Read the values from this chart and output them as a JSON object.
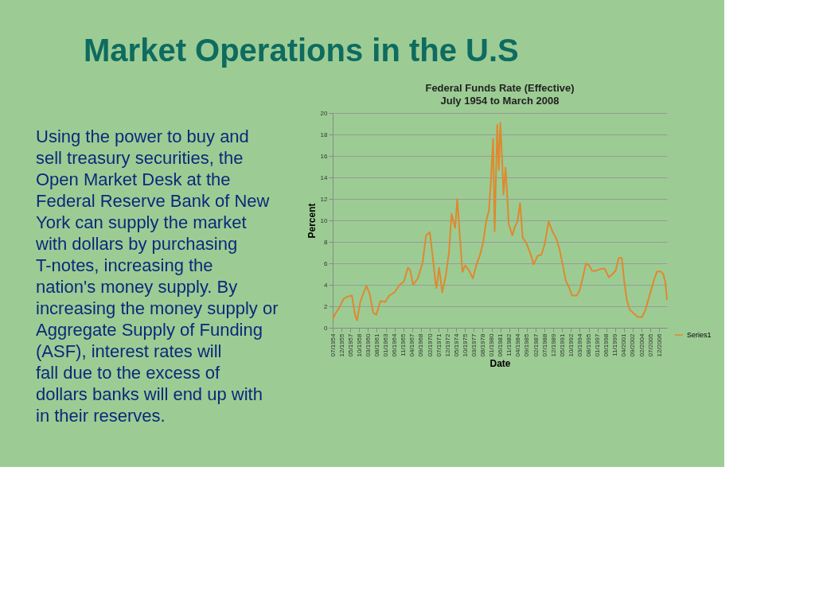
{
  "chart_data": {
    "type": "line",
    "title": "Federal Funds Rate (Effective)",
    "subtitle": "July 1954 to March 2008",
    "xlabel": "Date",
    "ylabel": "Percent",
    "annotations": [
      "Market Operations in the U.S",
      "Using the power to buy and sell treasury securities, the Open Market Desk at the Federal Reserve Bank of New York can supply the market with dollars by purchasing T-notes, increasing the nation's money supply. By increasing the money supply or Aggregate Supply of Funding (ASF), interest rates will fall due to the excess of dollars banks will end up with in their reserves."
    ],
    "x": [
      "1954-07",
      "1955-01",
      "1955-08",
      "1956-04",
      "1956-11",
      "1957-08",
      "1958-02",
      "1958-06",
      "1958-12",
      "1959-06",
      "1959-12",
      "1960-06",
      "1961-01",
      "1961-07",
      "1962-03",
      "1962-12",
      "1963-08",
      "1964-06",
      "1965-04",
      "1965-12",
      "1966-08",
      "1966-12",
      "1967-06",
      "1968-03",
      "1968-12",
      "1969-07",
      "1970-02",
      "1970-08",
      "1971-01",
      "1971-03",
      "1971-08",
      "1972-02",
      "1972-09",
      "1973-03",
      "1973-08",
      "1973-12",
      "1974-03",
      "1974-07",
      "1974-12",
      "1975-05",
      "1975-10",
      "1976-06",
      "1977-01",
      "1977-08",
      "1978-03",
      "1978-09",
      "1979-03",
      "1979-08",
      "1979-12",
      "1980-04",
      "1980-07",
      "1980-12",
      "1981-03",
      "1981-06",
      "1981-10",
      "1981-12",
      "1982-04",
      "1982-07",
      "1982-10",
      "1983-05",
      "1983-10",
      "1984-03",
      "1984-08",
      "1985-01",
      "1985-08",
      "1986-04",
      "1986-10",
      "1987-06",
      "1988-01",
      "1988-07",
      "1989-03",
      "1989-10",
      "1990-06",
      "1990-12",
      "1991-06",
      "1991-12",
      "1992-06",
      "1992-12",
      "1993-09",
      "1994-03",
      "1994-09",
      "1995-03",
      "1995-09",
      "1996-03",
      "1996-09",
      "1997-03",
      "1997-09",
      "1998-03",
      "1998-11",
      "1999-06",
      "1999-12",
      "2000-06",
      "2000-12",
      "2001-05",
      "2001-10",
      "2002-03",
      "2002-12",
      "2003-07",
      "2004-03",
      "2004-09",
      "2005-03",
      "2005-09",
      "2006-03",
      "2006-08",
      "2007-03",
      "2007-08",
      "2007-12",
      "2008-03"
    ],
    "series": [
      {
        "name": "Series1",
        "color": "#e0882e",
        "values": [
          0.8,
          1.4,
          1.9,
          2.7,
          2.9,
          3.0,
          1.2,
          0.7,
          2.4,
          3.2,
          3.9,
          3.2,
          1.4,
          1.2,
          2.5,
          2.4,
          3.0,
          3.3,
          4.0,
          4.3,
          5.6,
          5.4,
          4.0,
          4.6,
          6.0,
          8.6,
          8.9,
          6.5,
          4.2,
          3.7,
          5.6,
          3.3,
          4.9,
          7.0,
          10.6,
          9.8,
          9.3,
          12.0,
          8.5,
          5.2,
          5.8,
          5.3,
          4.6,
          5.9,
          6.8,
          8.0,
          10.0,
          10.9,
          13.8,
          17.6,
          9.0,
          18.9,
          14.7,
          19.1,
          15.0,
          12.4,
          14.9,
          12.6,
          9.7,
          8.6,
          9.4,
          9.9,
          11.6,
          8.4,
          7.9,
          6.9,
          5.9,
          6.7,
          6.8,
          7.7,
          9.9,
          9.0,
          8.3,
          7.3,
          5.9,
          4.4,
          3.8,
          3.0,
          3.0,
          3.5,
          4.7,
          6.0,
          5.8,
          5.3,
          5.3,
          5.4,
          5.5,
          5.5,
          4.7,
          5.0,
          5.3,
          6.5,
          6.5,
          4.2,
          2.5,
          1.7,
          1.3,
          1.0,
          1.0,
          1.6,
          2.6,
          3.6,
          4.6,
          5.25,
          5.25,
          5.0,
          4.2,
          2.6
        ]
      }
    ],
    "xlim": [
      "1954-07",
      "2008-03"
    ],
    "xticks": [
      {
        "value": "1954-07",
        "label": "07/1954"
      },
      {
        "value": "1955-12",
        "label": "12/1955"
      },
      {
        "value": "1957-05",
        "label": "05/1957"
      },
      {
        "value": "1958-10",
        "label": "10/1958"
      },
      {
        "value": "1960-03",
        "label": "03/1960"
      },
      {
        "value": "1961-08",
        "label": "08/1961"
      },
      {
        "value": "1963-01",
        "label": "01/1963"
      },
      {
        "value": "1964-06",
        "label": "06/1964"
      },
      {
        "value": "1965-11",
        "label": "11/1965"
      },
      {
        "value": "1967-04",
        "label": "04/1967"
      },
      {
        "value": "1968-09",
        "label": "09/1968"
      },
      {
        "value": "1970-02",
        "label": "02/1970"
      },
      {
        "value": "1971-07",
        "label": "07/1971"
      },
      {
        "value": "1972-12",
        "label": "12/1972"
      },
      {
        "value": "1974-05",
        "label": "05/1974"
      },
      {
        "value": "1975-10",
        "label": "10/1975"
      },
      {
        "value": "1977-03",
        "label": "03/1977"
      },
      {
        "value": "1978-08",
        "label": "08/1978"
      },
      {
        "value": "1980-01",
        "label": "01/1980"
      },
      {
        "value": "1981-06",
        "label": "06/1981"
      },
      {
        "value": "1982-11",
        "label": "11/1982"
      },
      {
        "value": "1984-04",
        "label": "04/1984"
      },
      {
        "value": "1985-09",
        "label": "09/1985"
      },
      {
        "value": "1987-02",
        "label": "02/1987"
      },
      {
        "value": "1988-07",
        "label": "07/1988"
      },
      {
        "value": "1989-12",
        "label": "12/1989"
      },
      {
        "value": "1991-05",
        "label": "05/1991"
      },
      {
        "value": "1992-10",
        "label": "10/1992"
      },
      {
        "value": "1994-03",
        "label": "03/1994"
      },
      {
        "value": "1995-08",
        "label": "08/1995"
      },
      {
        "value": "1997-01",
        "label": "01/1997"
      },
      {
        "value": "1998-06",
        "label": "06/1998"
      },
      {
        "value": "1999-11",
        "label": "11/1999"
      },
      {
        "value": "2001-04",
        "label": "04/2001"
      },
      {
        "value": "2002-09",
        "label": "09/2002"
      },
      {
        "value": "2004-02",
        "label": "02/2004"
      },
      {
        "value": "2005-07",
        "label": "07/2005"
      },
      {
        "value": "2006-12",
        "label": "12/2006"
      }
    ],
    "ylim": [
      0,
      20
    ],
    "yticks": [
      0,
      2,
      4,
      6,
      8,
      10,
      12,
      14,
      16,
      18,
      20
    ],
    "grid": "y",
    "legend": "right",
    "marker": "none",
    "line_style": "solid"
  }
}
